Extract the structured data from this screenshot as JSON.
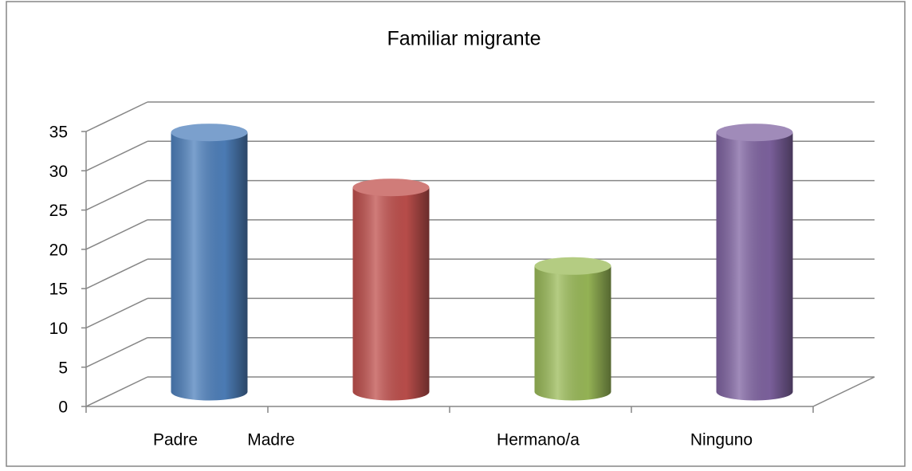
{
  "chart_data": {
    "type": "bar",
    "title": "Familiar migrante",
    "categories": [
      "Padre",
      "Madre",
      "Hermano/a",
      "Ninguno"
    ],
    "values": [
      33,
      26,
      16,
      33
    ],
    "colors": [
      "#4f81bd",
      "#c0504d",
      "#9bbb59",
      "#8064a2"
    ],
    "ylim": [
      0,
      35
    ],
    "yticks": [
      0,
      5,
      10,
      15,
      20,
      25,
      30,
      35
    ],
    "grid": true
  }
}
